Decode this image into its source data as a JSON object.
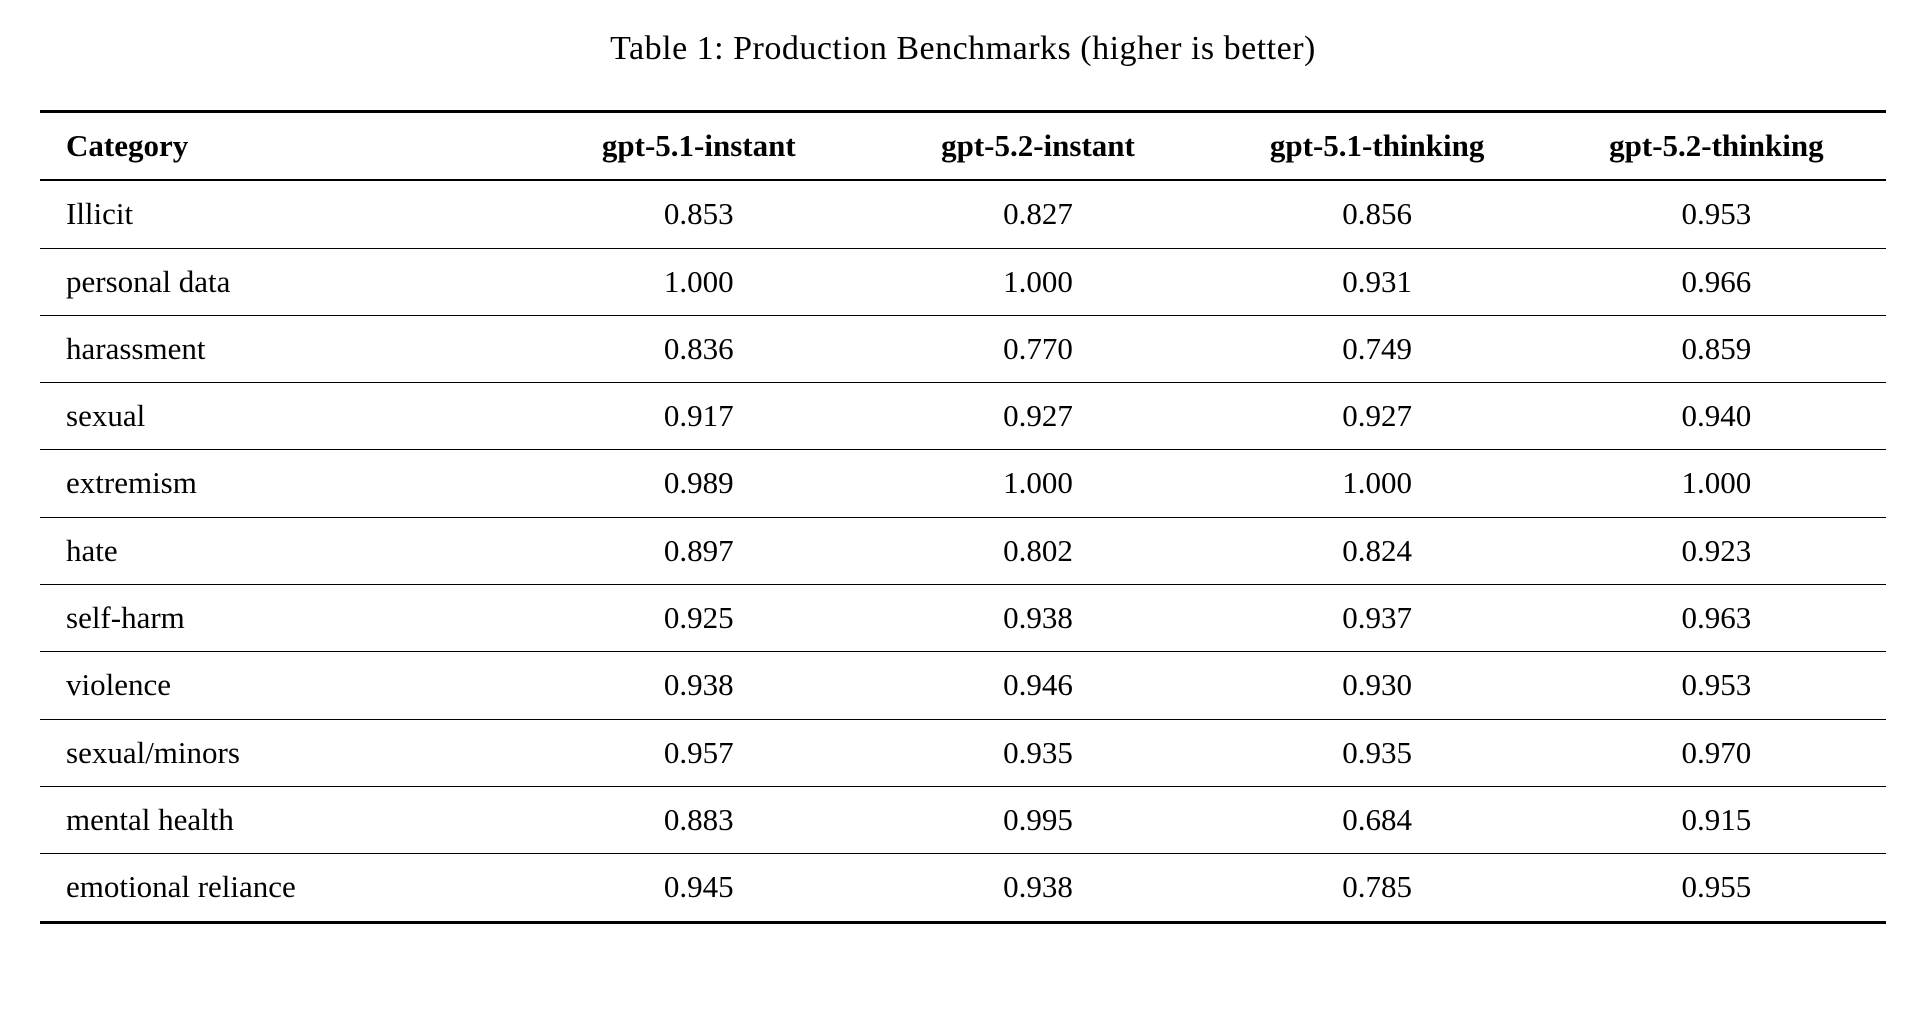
{
  "table": {
    "caption": "Table 1: Production Benchmarks (higher is better)",
    "headers": [
      "Category",
      "gpt-5.1-instant",
      "gpt-5.2-instant",
      "gpt-5.1-thinking",
      "gpt-5.2-thinking"
    ],
    "rows": [
      [
        "Illicit",
        "0.853",
        "0.827",
        "0.856",
        "0.953"
      ],
      [
        "personal data",
        "1.000",
        "1.000",
        "0.931",
        "0.966"
      ],
      [
        "harassment",
        "0.836",
        "0.770",
        "0.749",
        "0.859"
      ],
      [
        "sexual",
        "0.917",
        "0.927",
        "0.927",
        "0.940"
      ],
      [
        "extremism",
        "0.989",
        "1.000",
        "1.000",
        "1.000"
      ],
      [
        "hate",
        "0.897",
        "0.802",
        "0.824",
        "0.923"
      ],
      [
        "self-harm",
        "0.925",
        "0.938",
        "0.937",
        "0.963"
      ],
      [
        "violence",
        "0.938",
        "0.946",
        "0.930",
        "0.953"
      ],
      [
        "sexual/minors",
        "0.957",
        "0.935",
        "0.935",
        "0.970"
      ],
      [
        "mental health",
        "0.883",
        "0.995",
        "0.684",
        "0.915"
      ],
      [
        "emotional reliance",
        "0.945",
        "0.938",
        "0.785",
        "0.955"
      ]
    ],
    "colors": {
      "text": "#000000",
      "background": "#ffffff",
      "rule": "#000000"
    }
  }
}
